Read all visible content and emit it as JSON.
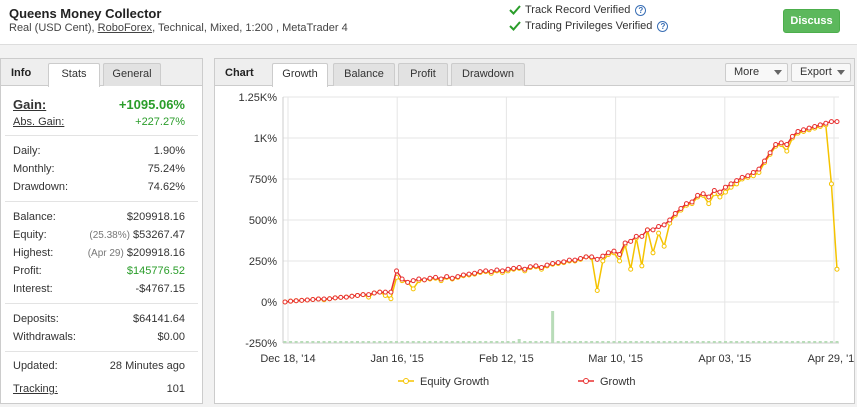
{
  "header": {
    "title": "Queens Money Collector",
    "subtitle_prefix": "Real (USD Cent), ",
    "broker": "RoboForex",
    "subtitle_suffix": ", Technical, Mixed, 1:200 , MetaTrader 4",
    "verify_1": "Track Record Verified",
    "verify_2": "Trading Privileges Verified",
    "discuss": "Discuss",
    "check_color": "#2a9d2a"
  },
  "left": {
    "title": "Info",
    "tabs": [
      "Stats",
      "General"
    ],
    "gain_label": "Gain:",
    "gain_value": "+1095.06%",
    "abs_gain_label": "Abs. Gain:",
    "abs_gain_value": "+227.27%",
    "daily_label": "Daily:",
    "daily_value": "1.90%",
    "monthly_label": "Monthly:",
    "monthly_value": "75.24%",
    "drawdown_label": "Drawdown:",
    "drawdown_value": "74.62%",
    "balance_label": "Balance:",
    "balance_value": "$209918.16",
    "equity_label": "Equity:",
    "equity_note": "(25.38%)",
    "equity_value": "$53267.47",
    "highest_label": "Highest:",
    "highest_note": "(Apr 29)",
    "highest_value": "$209918.16",
    "profit_label": "Profit:",
    "profit_value": "$145776.52",
    "interest_label": "Interest:",
    "interest_value": "-$4767.15",
    "deposits_label": "Deposits:",
    "deposits_value": "$64141.64",
    "withdrawals_label": "Withdrawals:",
    "withdrawals_value": "$0.00",
    "updated_label": "Updated:",
    "updated_value": "28 Minutes ago",
    "tracking_label": "Tracking:",
    "tracking_value": "101"
  },
  "chart_panel": {
    "title": "Chart",
    "tabs": [
      "Growth",
      "Balance",
      "Profit",
      "Drawdown"
    ],
    "more": "More",
    "export": "Export"
  },
  "chart_data": {
    "type": "line",
    "y_ticks": [
      "1.25K%",
      "1K%",
      "750%",
      "500%",
      "250%",
      "0%",
      "-250%"
    ],
    "y_tick_values": [
      1250,
      1000,
      750,
      500,
      250,
      0,
      -250
    ],
    "ylim": [
      -250,
      1250
    ],
    "x_ticks": [
      "Dec 18, '14",
      "Jan 16, '15",
      "Feb 12, '15",
      "Mar 10, '15",
      "Apr 03, '15",
      "Apr 29, '15"
    ],
    "grid": true,
    "legend_position": "bottom",
    "series": [
      {
        "name": "Equity Growth",
        "color": "#f5c300",
        "values": [
          0,
          5,
          8,
          10,
          12,
          15,
          18,
          14,
          20,
          25,
          28,
          30,
          35,
          40,
          45,
          30,
          55,
          60,
          40,
          20,
          150,
          130,
          120,
          80,
          130,
          135,
          140,
          145,
          130,
          150,
          140,
          150,
          160,
          165,
          170,
          180,
          185,
          175,
          190,
          180,
          190,
          200,
          205,
          190,
          210,
          215,
          200,
          220,
          230,
          235,
          240,
          250,
          250,
          260,
          275,
          270,
          70,
          250,
          290,
          300,
          250,
          350,
          200,
          390,
          220,
          440,
          300,
          420,
          340,
          480,
          530,
          560,
          590,
          600,
          640,
          650,
          600,
          660,
          640,
          670,
          700,
          720,
          750,
          760,
          770,
          790,
          850,
          900,
          950,
          960,
          920,
          1000,
          1030,
          1040,
          1050,
          1060,
          1070,
          1080,
          720,
          200
        ]
      },
      {
        "name": "Growth",
        "color": "#e83030",
        "values": [
          0,
          5,
          8,
          10,
          12,
          15,
          18,
          18,
          20,
          25,
          28,
          30,
          35,
          40,
          45,
          45,
          55,
          60,
          60,
          60,
          190,
          140,
          120,
          130,
          140,
          135,
          145,
          150,
          140,
          155,
          145,
          155,
          165,
          170,
          175,
          185,
          190,
          185,
          195,
          190,
          200,
          205,
          210,
          200,
          215,
          220,
          210,
          225,
          235,
          240,
          245,
          255,
          255,
          265,
          275,
          275,
          260,
          280,
          300,
          310,
          290,
          360,
          370,
          400,
          400,
          440,
          440,
          460,
          470,
          500,
          540,
          570,
          600,
          610,
          650,
          660,
          640,
          680,
          670,
          700,
          720,
          740,
          760,
          770,
          790,
          810,
          860,
          910,
          960,
          970,
          960,
          1010,
          1040,
          1050,
          1060,
          1070,
          1080,
          1090,
          1100,
          1100
        ]
      }
    ],
    "volume": [
      0,
      0,
      0,
      0,
      0,
      0,
      0,
      0,
      0,
      0,
      0,
      0,
      0,
      0,
      0,
      0,
      0,
      0,
      0,
      0,
      0,
      0,
      0,
      0,
      0,
      0,
      0,
      0,
      0,
      0,
      0,
      0,
      0,
      0,
      0,
      0,
      0,
      0,
      0,
      0,
      0,
      0,
      1,
      0,
      0,
      0,
      0,
      0,
      8,
      0,
      0,
      0,
      0,
      0,
      0,
      0,
      0,
      0,
      0,
      0,
      0,
      0,
      0,
      0,
      0,
      0,
      0,
      0,
      0,
      0,
      0,
      0,
      0,
      0,
      0,
      0,
      0,
      0,
      0,
      0,
      0,
      0,
      0,
      0,
      0,
      0,
      0,
      0,
      0,
      0,
      0,
      0,
      0,
      0,
      0,
      0,
      0,
      0,
      0,
      0
    ]
  }
}
